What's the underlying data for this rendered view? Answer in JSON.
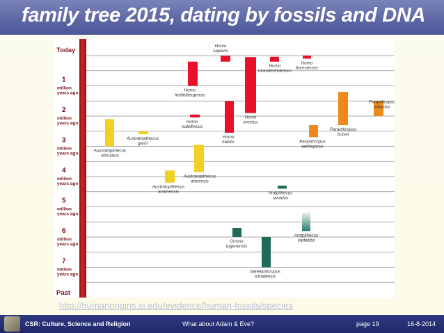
{
  "slide": {
    "title": "family tree 2015, dating by fossils and DNA",
    "url": "http://humanorigins.si.edu/evidence/human-fossils/species"
  },
  "timeline": {
    "today": "Today",
    "past": "Past",
    "unit_line1": "million",
    "unit_line2": "years ago",
    "ticks": [
      "1",
      "2",
      "3",
      "4",
      "5",
      "6",
      "7"
    ]
  },
  "species": [
    {
      "name": "Homo sapiens",
      "l1": "Homo",
      "l2": "sapiens",
      "color": "#e8102a",
      "from": 0.0,
      "to": 0.2
    },
    {
      "name": "Homo neanderthalensis",
      "l1": "Homo",
      "l2": "neanderthalensis",
      "color": "#e8102a",
      "from": 0.04,
      "to": 0.2
    },
    {
      "name": "Homo floresiensis",
      "l1": "Homo",
      "l2": "floresiensis",
      "color": "#e8102a",
      "from": 0.0,
      "to": 0.1
    },
    {
      "name": "Homo heidelbergensis",
      "l1": "Homo",
      "l2": "heidelbergensis",
      "color": "#e8102a",
      "from": 0.2,
      "to": 1.0
    },
    {
      "name": "Homo erectus",
      "l1": "Homo",
      "l2": "erectus",
      "color": "#e8102a",
      "from": 0.05,
      "to": 1.9
    },
    {
      "name": "Homo rudolfensis",
      "l1": "Homo",
      "l2": "rudolfensis",
      "color": "#e8102a",
      "from": 1.95,
      "to": 2.0
    },
    {
      "name": "Homo habilis",
      "l1": "Homo",
      "l2": "habilis",
      "color": "#e8102a",
      "from": 1.5,
      "to": 2.55
    },
    {
      "name": "Paranthropus boisei",
      "l1": "Paranthropus",
      "l2": "boisei",
      "color": "#ee8a1c",
      "from": 1.2,
      "to": 2.3
    },
    {
      "name": "Paranthropus robustus",
      "l1": "Paranthropus",
      "l2": "robustus",
      "color": "#ee8a1c",
      "from": 1.5,
      "to": 2.0
    },
    {
      "name": "Paranthropus aethiopicus",
      "l1": "Paranthropus",
      "l2": "aethiopicus",
      "color": "#ee8a1c",
      "from": 2.3,
      "to": 2.7
    },
    {
      "name": "Australopithecus africanus",
      "l1": "Australopithecus",
      "l2": "africanus",
      "color": "#f0d020",
      "from": 2.1,
      "to": 3.0
    },
    {
      "name": "Australopithecus garhi",
      "l1": "Australopithecus",
      "l2": "garhi",
      "color": "#f0d020",
      "from": 2.5,
      "to": 2.6
    },
    {
      "name": "Australopithecus afarensis",
      "l1": "Australopithecus",
      "l2": "afarensis",
      "color": "#f0d020",
      "from": 2.95,
      "to": 3.85
    },
    {
      "name": "Australopithecus anamensis",
      "l1": "Australopithecus",
      "l2": "anamensis",
      "color": "#f0d020",
      "from": 3.8,
      "to": 4.2
    },
    {
      "name": "Ardipithecus ramidus",
      "l1": "Ardipithecus",
      "l2": "ramidus",
      "color": "#1f6b5b",
      "from": 4.3,
      "to": 4.4
    },
    {
      "name": "Ardipithecus kadabba",
      "l1": "Ardipithecus",
      "l2": "kadabba",
      "color": "#2b7a6a",
      "from": 5.2,
      "to": 5.8
    },
    {
      "name": "Orrorin tugenensis",
      "l1": "Orrorin",
      "l2": "tugenensis",
      "color": "#1f6b5b",
      "from": 5.7,
      "to": 6.0
    },
    {
      "name": "Sahelanthropus tchadensis",
      "l1": "Sahelanthropus",
      "l2": "tchadensis",
      "color": "#1f6b5b",
      "from": 6.0,
      "to": 7.0
    }
  ],
  "footer": {
    "course": "CSR: Culture, Science and Religion",
    "topic": "What about Adam & Eve?",
    "page": "page 19",
    "date": "16-8-2014"
  }
}
